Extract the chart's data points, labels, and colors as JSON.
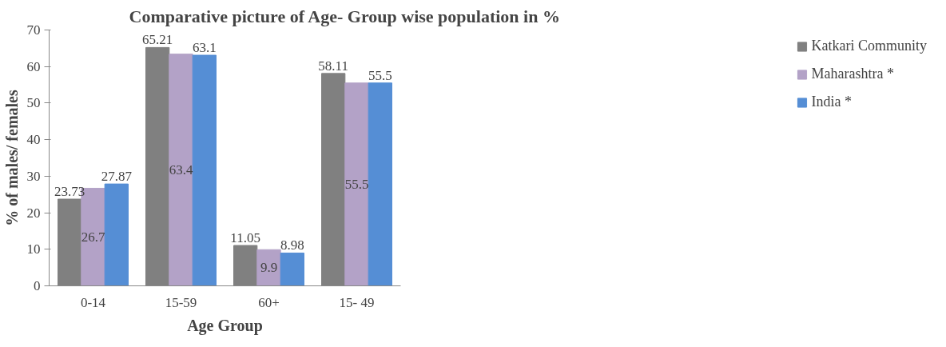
{
  "chart_data": {
    "type": "bar",
    "title": "Comparative picture of Age- Group wise population in %",
    "xlabel": "Age Group",
    "ylabel": "% of males/ females",
    "categories": [
      "0-14",
      "15-59",
      "60+",
      "15- 49"
    ],
    "series": [
      {
        "name": "Katkari Community",
        "color": "#808080",
        "values": [
          23.73,
          65.21,
          11.05,
          58.11
        ]
      },
      {
        "name": "Maharashtra *",
        "color": "#b3a2c7",
        "values": [
          26.7,
          63.4,
          9.9,
          55.5
        ]
      },
      {
        "name": "India *",
        "color": "#558ed5",
        "values": [
          27.87,
          63.1,
          8.98,
          55.5
        ]
      }
    ],
    "ylim": [
      0,
      70
    ],
    "yticks": [
      0,
      10,
      20,
      30,
      40,
      50,
      60,
      70
    ],
    "data_labels": true,
    "legend": "right",
    "grid": false
  }
}
